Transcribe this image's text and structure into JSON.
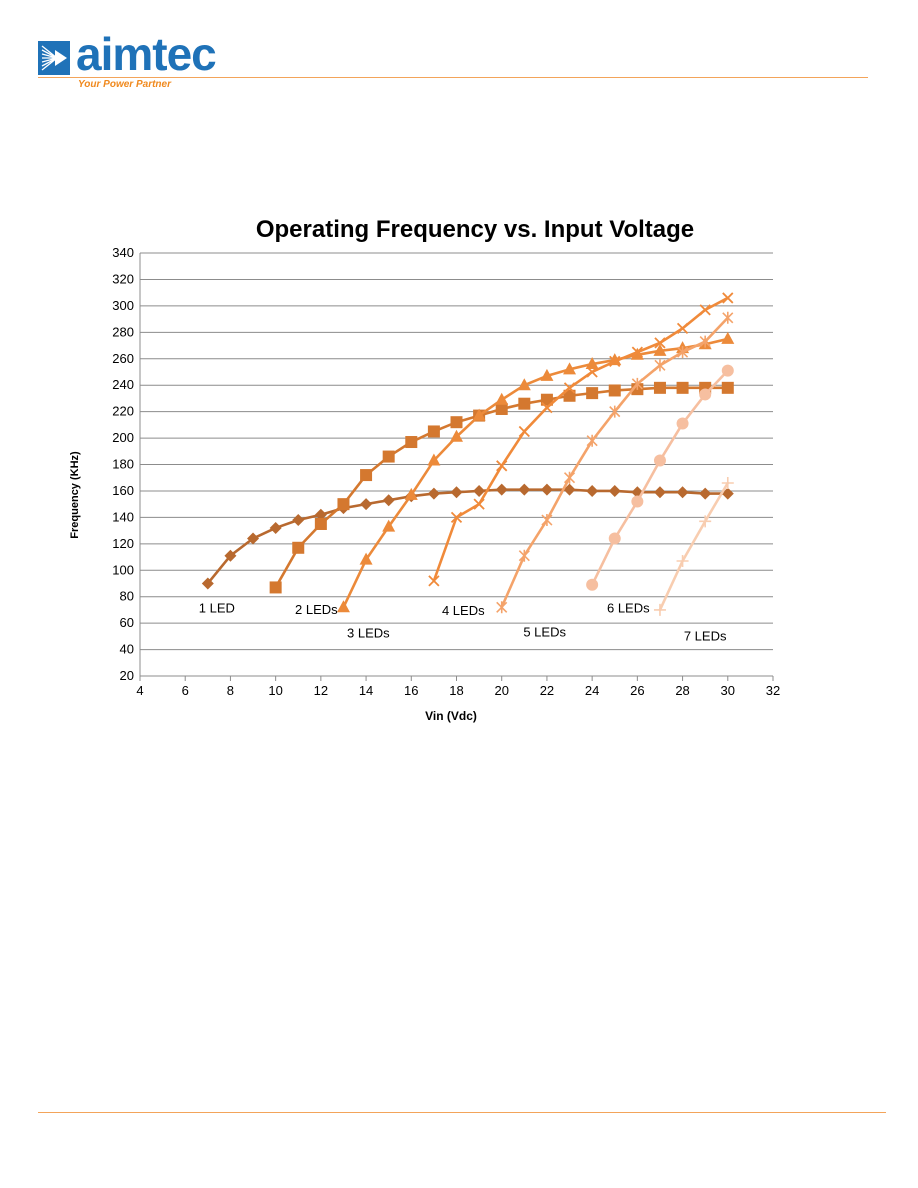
{
  "header": {
    "logo_text": "aimtec",
    "tagline": "Your Power Partner",
    "brand_blue": "#1f72b8",
    "brand_orange": "#f0891d"
  },
  "chart_data": {
    "type": "line",
    "title": "Operating Frequency vs. Input Voltage",
    "xlabel": "Vin (Vdc)",
    "ylabel": "Frequency (KHz)",
    "xlim": [
      4,
      32
    ],
    "ylim": [
      20,
      340
    ],
    "xticks": [
      4,
      6,
      8,
      10,
      12,
      14,
      16,
      18,
      20,
      22,
      24,
      26,
      28,
      30,
      32
    ],
    "yticks": [
      20,
      40,
      60,
      80,
      100,
      120,
      140,
      160,
      180,
      200,
      220,
      240,
      260,
      280,
      300,
      320,
      340
    ],
    "grid": "horizontal",
    "series": [
      {
        "name": "1 LED",
        "marker": "diamond",
        "color": "#b8692f",
        "x": [
          7,
          8,
          9,
          10,
          11,
          12,
          13,
          14,
          15,
          16,
          17,
          18,
          19,
          20,
          21,
          22,
          23,
          24,
          25,
          26,
          27,
          28,
          29,
          30
        ],
        "y": [
          90,
          111,
          124,
          132,
          138,
          142,
          147,
          150,
          153,
          156,
          158,
          159,
          160,
          161,
          161,
          161,
          161,
          160,
          160,
          159,
          159,
          159,
          158,
          158
        ]
      },
      {
        "name": "2 LEDs",
        "marker": "square",
        "color": "#d4782f",
        "x": [
          10,
          11,
          12,
          13,
          14,
          15,
          16,
          17,
          18,
          19,
          20,
          21,
          22,
          23,
          24,
          25,
          26,
          27,
          28,
          29,
          30
        ],
        "y": [
          87,
          117,
          135,
          150,
          172,
          186,
          197,
          205,
          212,
          217,
          222,
          226,
          229,
          232,
          234,
          236,
          237,
          238,
          238,
          238,
          238
        ]
      },
      {
        "name": "3 LEDs",
        "marker": "triangle",
        "color": "#ec8a3a",
        "x": [
          13,
          14,
          15,
          16,
          17,
          18,
          19,
          20,
          21,
          22,
          23,
          24,
          25,
          26,
          27,
          28,
          29,
          30
        ],
        "y": [
          72,
          108,
          133,
          157,
          183,
          201,
          217,
          229,
          240,
          247,
          252,
          256,
          259,
          263,
          266,
          268,
          271,
          275
        ]
      },
      {
        "name": "4 LEDs",
        "marker": "x",
        "color": "#f08a3a",
        "x": [
          17,
          18,
          19,
          20,
          21,
          22,
          23,
          24,
          25,
          26,
          27,
          28,
          29,
          30
        ],
        "y": [
          92,
          140,
          150,
          179,
          205,
          223,
          238,
          250,
          258,
          265,
          272,
          283,
          297,
          306
        ]
      },
      {
        "name": "5 LEDs",
        "marker": "star",
        "color": "#f4a36a",
        "x": [
          20,
          21,
          22,
          23,
          24,
          25,
          26,
          27,
          28,
          29,
          30
        ],
        "y": [
          72,
          111,
          138,
          170,
          198,
          220,
          241,
          255,
          265,
          273,
          291
        ]
      },
      {
        "name": "6 LEDs",
        "marker": "circle",
        "color": "#f6bfa0",
        "x": [
          24,
          25,
          26,
          27,
          28,
          29,
          30
        ],
        "y": [
          89,
          124,
          152,
          183,
          211,
          233,
          251
        ]
      },
      {
        "name": "7 LEDs",
        "marker": "plus",
        "color": "#f8cdb0",
        "x": [
          27,
          28,
          29,
          30
        ],
        "y": [
          70,
          107,
          137,
          166
        ]
      }
    ],
    "annotations": [
      {
        "text": "1 LED",
        "x": 7.4,
        "y": 68
      },
      {
        "text": "2 LEDs",
        "x": 11.8,
        "y": 67
      },
      {
        "text": "3 LEDs",
        "x": 14.1,
        "y": 49
      },
      {
        "text": "4 LEDs",
        "x": 18.3,
        "y": 66
      },
      {
        "text": "5 LEDs",
        "x": 21.9,
        "y": 50
      },
      {
        "text": "6 LEDs",
        "x": 25.6,
        "y": 68
      },
      {
        "text": "7 LEDs",
        "x": 29.0,
        "y": 47
      }
    ]
  }
}
